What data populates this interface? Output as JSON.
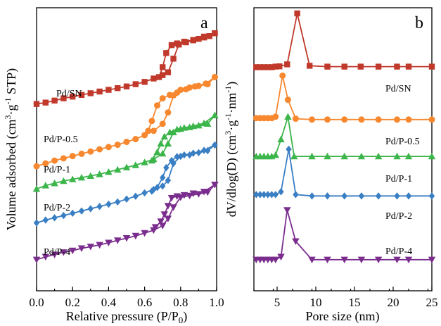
{
  "chart_data": [
    {
      "id": "a",
      "type": "line",
      "panel_label": "a",
      "xlabel": "Relative pressure (P/P0)",
      "ylabel": "Volume adsorbed (cm3·g-1 STP)",
      "xlim": [
        0.0,
        1.0
      ],
      "ylim": [
        0,
        10
      ],
      "x_ticks": [
        "0.0",
        "0.2",
        "0.4",
        "0.6",
        "0.8",
        "1.0"
      ],
      "y_ticks_shown": false,
      "series": [
        {
          "name": "Pd/SN",
          "color": "#c0392b",
          "marker": "square",
          "adsorption": [
            [
              0.0,
              6.6
            ],
            [
              0.05,
              6.65
            ],
            [
              0.1,
              6.72
            ],
            [
              0.15,
              6.8
            ],
            [
              0.2,
              6.86
            ],
            [
              0.25,
              6.92
            ],
            [
              0.3,
              6.98
            ],
            [
              0.35,
              7.04
            ],
            [
              0.4,
              7.1
            ],
            [
              0.45,
              7.16
            ],
            [
              0.5,
              7.22
            ],
            [
              0.55,
              7.3
            ],
            [
              0.6,
              7.38
            ],
            [
              0.65,
              7.5
            ],
            [
              0.7,
              7.62
            ],
            [
              0.73,
              7.72
            ],
            [
              0.76,
              8.2
            ],
            [
              0.79,
              8.7
            ],
            [
              0.83,
              8.78
            ],
            [
              0.87,
              8.85
            ],
            [
              0.9,
              8.9
            ],
            [
              0.93,
              8.95
            ],
            [
              0.96,
              9.0
            ],
            [
              0.99,
              9.1
            ]
          ],
          "desorption": [
            [
              0.99,
              9.1
            ],
            [
              0.93,
              8.98
            ],
            [
              0.87,
              8.86
            ],
            [
              0.82,
              8.8
            ],
            [
              0.78,
              8.74
            ],
            [
              0.75,
              8.68
            ],
            [
              0.72,
              8.4
            ],
            [
              0.7,
              7.9
            ],
            [
              0.68,
              7.55
            ]
          ]
        },
        {
          "name": "Pd/P-0.5",
          "color": "#f7882f",
          "marker": "circle",
          "adsorption": [
            [
              0.0,
              4.4
            ],
            [
              0.05,
              4.5
            ],
            [
              0.1,
              4.6
            ],
            [
              0.15,
              4.68
            ],
            [
              0.2,
              4.76
            ],
            [
              0.25,
              4.84
            ],
            [
              0.3,
              4.92
            ],
            [
              0.35,
              5.0
            ],
            [
              0.4,
              5.08
            ],
            [
              0.45,
              5.16
            ],
            [
              0.5,
              5.26
            ],
            [
              0.55,
              5.36
            ],
            [
              0.6,
              5.5
            ],
            [
              0.65,
              5.65
            ],
            [
              0.7,
              5.9
            ],
            [
              0.73,
              6.3
            ],
            [
              0.76,
              6.9
            ],
            [
              0.8,
              7.1
            ],
            [
              0.85,
              7.18
            ],
            [
              0.9,
              7.24
            ],
            [
              0.95,
              7.3
            ],
            [
              0.99,
              7.55
            ]
          ],
          "desorption": [
            [
              0.99,
              7.55
            ],
            [
              0.94,
              7.32
            ],
            [
              0.88,
              7.22
            ],
            [
              0.83,
              7.12
            ],
            [
              0.78,
              7.0
            ],
            [
              0.74,
              6.92
            ],
            [
              0.7,
              6.8
            ],
            [
              0.67,
              6.55
            ],
            [
              0.64,
              6.0
            ],
            [
              0.62,
              5.65
            ]
          ]
        },
        {
          "name": "Pd/P-1",
          "color": "#3cb54a",
          "marker": "triangle-up",
          "adsorption": [
            [
              0.0,
              3.6
            ],
            [
              0.05,
              3.72
            ],
            [
              0.1,
              3.8
            ],
            [
              0.15,
              3.88
            ],
            [
              0.2,
              3.94
            ],
            [
              0.25,
              4.0
            ],
            [
              0.3,
              4.06
            ],
            [
              0.35,
              4.12
            ],
            [
              0.4,
              4.2
            ],
            [
              0.45,
              4.28
            ],
            [
              0.5,
              4.36
            ],
            [
              0.55,
              4.44
            ],
            [
              0.6,
              4.54
            ],
            [
              0.65,
              4.65
            ],
            [
              0.7,
              4.85
            ],
            [
              0.73,
              5.2
            ],
            [
              0.76,
              5.6
            ],
            [
              0.8,
              5.72
            ],
            [
              0.85,
              5.78
            ],
            [
              0.9,
              5.84
            ],
            [
              0.95,
              5.9
            ],
            [
              0.99,
              6.2
            ]
          ],
          "desorption": [
            [
              0.99,
              6.2
            ],
            [
              0.93,
              5.92
            ],
            [
              0.87,
              5.82
            ],
            [
              0.82,
              5.76
            ],
            [
              0.78,
              5.7
            ],
            [
              0.74,
              5.6
            ],
            [
              0.71,
              5.45
            ],
            [
              0.69,
              5.2
            ],
            [
              0.67,
              4.9
            ],
            [
              0.64,
              4.6
            ]
          ]
        },
        {
          "name": "Pd/P-2",
          "color": "#3a7fc4",
          "marker": "diamond",
          "adsorption": [
            [
              0.0,
              2.4
            ],
            [
              0.05,
              2.5
            ],
            [
              0.1,
              2.58
            ],
            [
              0.15,
              2.66
            ],
            [
              0.2,
              2.74
            ],
            [
              0.25,
              2.82
            ],
            [
              0.3,
              2.9
            ],
            [
              0.35,
              2.98
            ],
            [
              0.4,
              3.06
            ],
            [
              0.45,
              3.14
            ],
            [
              0.5,
              3.24
            ],
            [
              0.55,
              3.34
            ],
            [
              0.6,
              3.46
            ],
            [
              0.65,
              3.58
            ],
            [
              0.7,
              3.7
            ],
            [
              0.73,
              3.9
            ],
            [
              0.76,
              4.5
            ],
            [
              0.8,
              4.75
            ],
            [
              0.85,
              4.8
            ],
            [
              0.9,
              4.88
            ],
            [
              0.95,
              4.95
            ],
            [
              0.99,
              5.15
            ]
          ],
          "desorption": [
            [
              0.99,
              5.15
            ],
            [
              0.93,
              4.96
            ],
            [
              0.87,
              4.86
            ],
            [
              0.82,
              4.8
            ],
            [
              0.78,
              4.74
            ],
            [
              0.75,
              4.6
            ],
            [
              0.72,
              4.35
            ],
            [
              0.7,
              4.0
            ],
            [
              0.67,
              3.65
            ],
            [
              0.64,
              3.52
            ]
          ]
        },
        {
          "name": "Pd/P-4",
          "color": "#7b2d8e",
          "marker": "triangle-down",
          "adsorption": [
            [
              0.0,
              1.1
            ],
            [
              0.05,
              1.2
            ],
            [
              0.1,
              1.28
            ],
            [
              0.15,
              1.36
            ],
            [
              0.2,
              1.42
            ],
            [
              0.25,
              1.5
            ],
            [
              0.3,
              1.56
            ],
            [
              0.35,
              1.62
            ],
            [
              0.4,
              1.7
            ],
            [
              0.45,
              1.78
            ],
            [
              0.5,
              1.86
            ],
            [
              0.55,
              1.94
            ],
            [
              0.6,
              2.04
            ],
            [
              0.65,
              2.14
            ],
            [
              0.7,
              2.3
            ],
            [
              0.73,
              2.55
            ],
            [
              0.76,
              2.95
            ],
            [
              0.8,
              3.3
            ],
            [
              0.85,
              3.36
            ],
            [
              0.9,
              3.42
            ],
            [
              0.95,
              3.48
            ],
            [
              0.99,
              3.75
            ]
          ],
          "desorption": [
            [
              0.99,
              3.75
            ],
            [
              0.93,
              3.5
            ],
            [
              0.87,
              3.44
            ],
            [
              0.82,
              3.38
            ],
            [
              0.78,
              3.34
            ],
            [
              0.75,
              3.28
            ],
            [
              0.73,
              3.0
            ],
            [
              0.71,
              2.7
            ],
            [
              0.69,
              2.45
            ],
            [
              0.66,
              2.25
            ]
          ]
        }
      ]
    },
    {
      "id": "b",
      "type": "line",
      "panel_label": "b",
      "xlabel": "Pore size (nm)",
      "ylabel": "dV/dlog(D) (cm3·g-1·nm-1)",
      "xlim": [
        2,
        25
      ],
      "ylim": [
        0,
        10
      ],
      "x_ticks": [
        "5",
        "10",
        "15",
        "20",
        "25"
      ],
      "y_ticks_shown": false,
      "series": [
        {
          "name": "Pd/SN",
          "color": "#c0392b",
          "marker": "square",
          "points": [
            [
              2.3,
              7.9
            ],
            [
              2.8,
              7.9
            ],
            [
              3.3,
              7.9
            ],
            [
              3.8,
              7.9
            ],
            [
              4.3,
              7.9
            ],
            [
              4.8,
              7.92
            ],
            [
              5.3,
              7.93
            ],
            [
              6.3,
              8.0
            ],
            [
              7.6,
              9.8
            ],
            [
              9.2,
              7.95
            ],
            [
              11.5,
              7.92
            ],
            [
              13.7,
              7.92
            ],
            [
              15.8,
              7.92
            ],
            [
              18.1,
              7.92
            ],
            [
              20.5,
              7.92
            ],
            [
              22,
              7.92
            ],
            [
              25,
              7.92
            ]
          ]
        },
        {
          "name": "Pd/P-0.5",
          "color": "#f7882f",
          "marker": "circle",
          "points": [
            [
              2.3,
              6.1
            ],
            [
              2.8,
              6.1
            ],
            [
              3.3,
              6.1
            ],
            [
              3.8,
              6.1
            ],
            [
              4.3,
              6.1
            ],
            [
              4.8,
              6.15
            ],
            [
              5.7,
              7.6
            ],
            [
              6.4,
              6.75
            ],
            [
              7.4,
              6.08
            ],
            [
              9.5,
              6.05
            ],
            [
              11.5,
              6.05
            ],
            [
              13.7,
              6.05
            ],
            [
              15.9,
              6.05
            ],
            [
              18.1,
              6.05
            ],
            [
              20.5,
              6.05
            ],
            [
              22,
              6.05
            ],
            [
              25,
              6.05
            ]
          ]
        },
        {
          "name": "Pd/P-1",
          "color": "#3cb54a",
          "marker": "triangle-up",
          "points": [
            [
              2.3,
              4.75
            ],
            [
              2.8,
              4.75
            ],
            [
              3.3,
              4.75
            ],
            [
              3.8,
              4.75
            ],
            [
              4.3,
              4.75
            ],
            [
              4.8,
              4.8
            ],
            [
              5.5,
              5.35
            ],
            [
              6.4,
              6.15
            ],
            [
              7.2,
              4.75
            ],
            [
              9.5,
              4.75
            ],
            [
              11.5,
              4.75
            ],
            [
              13.7,
              4.75
            ],
            [
              15.9,
              4.75
            ],
            [
              18.1,
              4.75
            ],
            [
              20.5,
              4.75
            ],
            [
              22,
              4.75
            ],
            [
              25,
              4.75
            ]
          ]
        },
        {
          "name": "Pd/P-2",
          "color": "#3a7fc4",
          "marker": "diamond",
          "points": [
            [
              2.3,
              3.4
            ],
            [
              2.8,
              3.4
            ],
            [
              3.3,
              3.4
            ],
            [
              3.8,
              3.4
            ],
            [
              4.3,
              3.4
            ],
            [
              4.8,
              3.4
            ],
            [
              5.5,
              3.5
            ],
            [
              6.5,
              5.0
            ],
            [
              7.4,
              3.4
            ],
            [
              9.5,
              3.35
            ],
            [
              11.5,
              3.35
            ],
            [
              13.7,
              3.35
            ],
            [
              15.9,
              3.35
            ],
            [
              18.1,
              3.35
            ],
            [
              20.5,
              3.35
            ],
            [
              22,
              3.35
            ],
            [
              25,
              3.35
            ]
          ]
        },
        {
          "name": "Pd/P-4",
          "color": "#7b2d8e",
          "marker": "triangle-down",
          "points": [
            [
              2.3,
              1.1
            ],
            [
              2.8,
              1.1
            ],
            [
              3.3,
              1.1
            ],
            [
              3.8,
              1.1
            ],
            [
              4.3,
              1.1
            ],
            [
              4.8,
              1.1
            ],
            [
              5.5,
              1.2
            ],
            [
              6.3,
              2.85
            ],
            [
              7.4,
              1.75
            ],
            [
              9.5,
              1.1
            ],
            [
              11.5,
              1.1
            ],
            [
              13.7,
              1.1
            ],
            [
              15.9,
              1.1
            ],
            [
              18.1,
              1.1
            ],
            [
              20.5,
              1.1
            ],
            [
              22,
              1.1
            ],
            [
              25,
              1.1
            ]
          ]
        }
      ]
    }
  ]
}
